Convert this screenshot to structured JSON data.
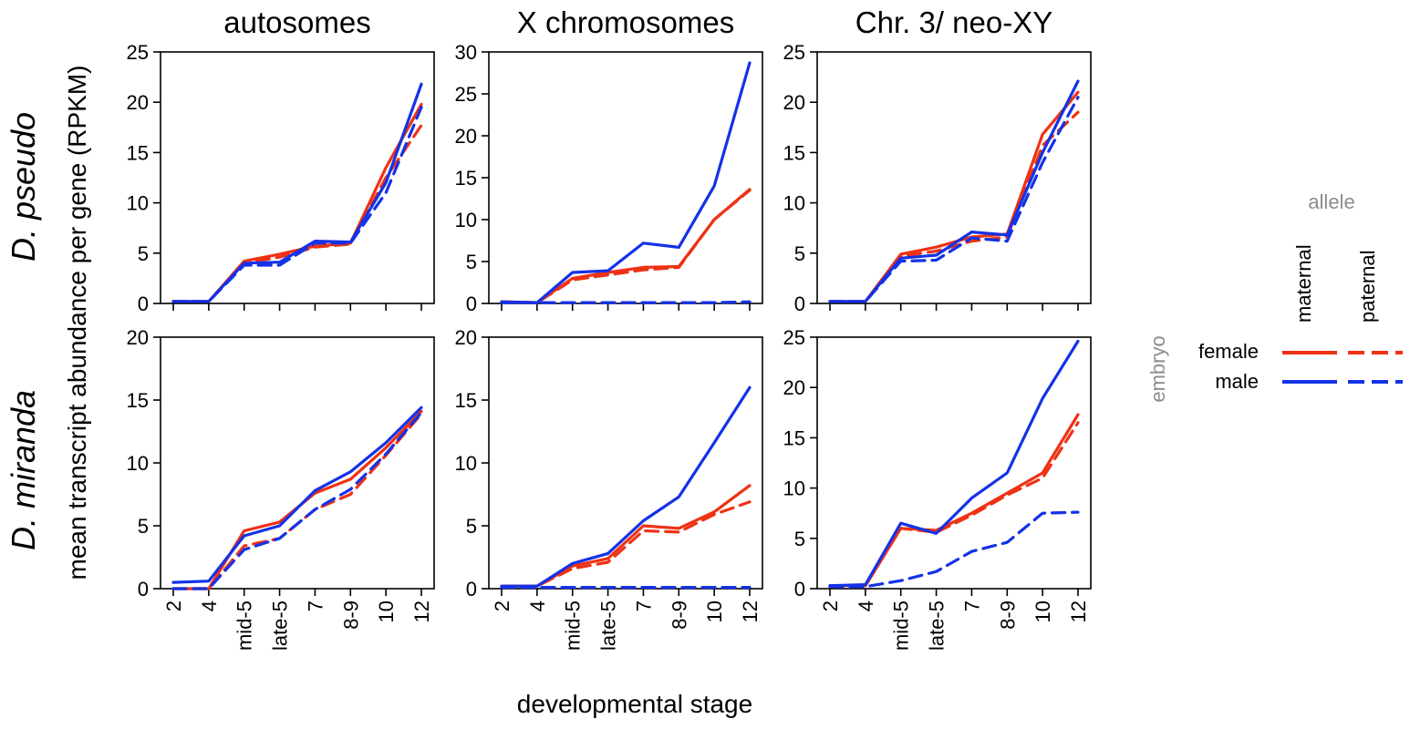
{
  "chart_data": {
    "type": "line",
    "column_titles": [
      "autosomes",
      "X chromosomes",
      "Chr. 3/ neo-XY"
    ],
    "row_labels": [
      "D. pseudo",
      "D. miranda"
    ],
    "ylabel": "mean transcript abundance per gene (RPKM)",
    "xlabel": "developmental stage",
    "categories": [
      "2",
      "4",
      "mid-5",
      "late-5",
      "7",
      "8-9",
      "10",
      "12"
    ],
    "legend": {
      "allele_title": "allele",
      "embryo_title": "embryo",
      "alleles": [
        "maternal",
        "paternal"
      ],
      "embryos": [
        {
          "label": "female",
          "color": "#ee3214"
        },
        {
          "label": "male",
          "color": "#1432e6"
        }
      ]
    },
    "styles": {
      "female_maternal": {
        "color": "#ee3214",
        "dash": "solid"
      },
      "female_paternal": {
        "color": "#ee3214",
        "dash": "dashed"
      },
      "male_maternal": {
        "color": "#1432e6",
        "dash": "solid"
      },
      "male_paternal": {
        "color": "#1432e6",
        "dash": "dashed"
      }
    },
    "panels": [
      {
        "row": 0,
        "col": 0,
        "ylim": [
          0,
          25
        ],
        "yticks": [
          0,
          5,
          10,
          15,
          20,
          25
        ],
        "series": [
          {
            "key": "female_maternal",
            "values": [
              0.2,
              0.2,
              4.2,
              4.9,
              5.7,
              6.0,
              13.5,
              19.8
            ]
          },
          {
            "key": "female_paternal",
            "values": [
              0.2,
              0.2,
              4.0,
              4.6,
              5.6,
              5.9,
              12.5,
              17.7
            ]
          },
          {
            "key": "male_maternal",
            "values": [
              0.2,
              0.2,
              4.0,
              4.1,
              6.2,
              6.1,
              12.0,
              21.8
            ]
          },
          {
            "key": "male_paternal",
            "values": [
              0.2,
              0.2,
              3.8,
              3.8,
              6.0,
              6.0,
              11.0,
              19.5
            ]
          }
        ]
      },
      {
        "row": 0,
        "col": 1,
        "ylim": [
          0,
          30
        ],
        "yticks": [
          0,
          5,
          10,
          15,
          20,
          25,
          30
        ],
        "series": [
          {
            "key": "female_maternal",
            "values": [
              0.2,
              0.1,
              3.0,
              3.7,
              4.3,
              4.4,
              10.0,
              13.6
            ]
          },
          {
            "key": "female_paternal",
            "values": [
              0.2,
              0.1,
              2.8,
              3.4,
              4.0,
              4.3,
              10.0,
              13.5
            ]
          },
          {
            "key": "male_maternal",
            "values": [
              0.2,
              0.1,
              3.7,
              3.9,
              7.2,
              6.7,
              14.0,
              28.7
            ]
          },
          {
            "key": "male_paternal",
            "values": [
              0.1,
              0.1,
              0.1,
              0.1,
              0.1,
              0.1,
              0.1,
              0.2
            ]
          }
        ]
      },
      {
        "row": 0,
        "col": 2,
        "ylim": [
          0,
          25
        ],
        "yticks": [
          0,
          5,
          10,
          15,
          20,
          25
        ],
        "series": [
          {
            "key": "female_maternal",
            "values": [
              0.2,
              0.2,
              4.9,
              5.6,
              6.6,
              6.9,
              16.8,
              21.0
            ]
          },
          {
            "key": "female_paternal",
            "values": [
              0.2,
              0.2,
              4.7,
              5.2,
              6.2,
              6.6,
              15.7,
              19.0
            ]
          },
          {
            "key": "male_maternal",
            "values": [
              0.2,
              0.2,
              4.5,
              4.8,
              7.1,
              6.8,
              15.0,
              22.1
            ]
          },
          {
            "key": "male_paternal",
            "values": [
              0.2,
              0.2,
              4.2,
              4.3,
              6.5,
              6.2,
              14.0,
              20.5
            ]
          }
        ]
      },
      {
        "row": 1,
        "col": 0,
        "ylim": [
          0,
          20
        ],
        "yticks": [
          0,
          5,
          10,
          15,
          20
        ],
        "series": [
          {
            "key": "female_maternal",
            "values": [
              0.0,
              0.0,
              4.6,
              5.3,
              7.6,
              8.7,
              11.2,
              14.1
            ]
          },
          {
            "key": "female_paternal",
            "values": [
              0.0,
              0.0,
              3.4,
              4.0,
              6.3,
              7.5,
              10.6,
              13.9
            ]
          },
          {
            "key": "male_maternal",
            "values": [
              0.5,
              0.6,
              4.2,
              5.0,
              7.8,
              9.3,
              11.6,
              14.4
            ]
          },
          {
            "key": "male_paternal",
            "values": [
              0.0,
              0.0,
              3.1,
              4.0,
              6.3,
              7.9,
              10.7,
              14.0
            ]
          }
        ]
      },
      {
        "row": 1,
        "col": 1,
        "ylim": [
          0,
          20
        ],
        "yticks": [
          0,
          5,
          10,
          15,
          20
        ],
        "series": [
          {
            "key": "female_maternal",
            "values": [
              0.2,
              0.2,
              1.8,
              2.4,
              5.0,
              4.8,
              6.1,
              8.2
            ]
          },
          {
            "key": "female_paternal",
            "values": [
              0.2,
              0.2,
              1.6,
              2.1,
              4.6,
              4.5,
              5.9,
              6.9
            ]
          },
          {
            "key": "male_maternal",
            "values": [
              0.2,
              0.2,
              2.0,
              2.8,
              5.4,
              7.3,
              11.6,
              16.0
            ]
          },
          {
            "key": "male_paternal",
            "values": [
              0.1,
              0.1,
              0.1,
              0.1,
              0.1,
              0.1,
              0.1,
              0.1
            ]
          }
        ]
      },
      {
        "row": 1,
        "col": 2,
        "ylim": [
          0,
          25
        ],
        "yticks": [
          0,
          5,
          10,
          15,
          20,
          25
        ],
        "series": [
          {
            "key": "female_maternal",
            "values": [
              0.3,
              0.3,
              6.0,
              5.8,
              7.5,
              9.5,
              11.5,
              17.3
            ]
          },
          {
            "key": "female_paternal",
            "values": [
              0.3,
              0.3,
              6.0,
              5.6,
              7.3,
              9.3,
              11.0,
              16.5
            ]
          },
          {
            "key": "male_maternal",
            "values": [
              0.3,
              0.4,
              6.5,
              5.5,
              9.0,
              11.5,
              18.9,
              24.6
            ]
          },
          {
            "key": "male_paternal",
            "values": [
              0.2,
              0.2,
              0.8,
              1.7,
              3.7,
              4.6,
              7.5,
              7.6
            ]
          }
        ]
      }
    ]
  }
}
